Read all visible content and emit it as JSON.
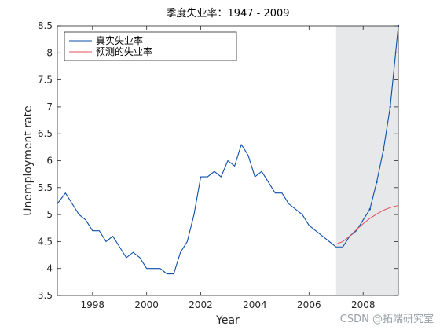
{
  "chart_data": {
    "type": "line",
    "title": "季度失业率：1947 - 2009",
    "xlabel": "Year",
    "ylabel": "Unemployment rate",
    "xlim": [
      1996.7,
      2009.3
    ],
    "ylim": [
      3.5,
      8.5
    ],
    "xticks": [
      1998,
      2000,
      2002,
      2004,
      2006,
      2008
    ],
    "yticks": [
      3.5,
      4,
      4.5,
      5,
      5.5,
      6,
      6.5,
      7,
      7.5,
      8,
      8.5
    ],
    "xtick_labels": [
      "1998",
      "2000",
      "2002",
      "2004",
      "2006",
      "2008"
    ],
    "ytick_labels": [
      "3.5",
      "4",
      "4.5",
      "5",
      "5.5",
      "6",
      "6.5",
      "7",
      "7.5",
      "8",
      "8.5"
    ],
    "shaded_region": {
      "x_start": 2007.0,
      "x_end": 2009.3,
      "color": "#e6e8ea"
    },
    "legend_placement": "top-left",
    "series": [
      {
        "name": "真实失业率",
        "color": "#0d4ea8",
        "x": [
          1996.7,
          1997.0,
          1997.25,
          1997.5,
          1997.75,
          1998.0,
          1998.25,
          1998.5,
          1998.75,
          1999.0,
          1999.25,
          1999.5,
          1999.75,
          2000.0,
          2000.25,
          2000.5,
          2000.75,
          2001.0,
          2001.25,
          2001.5,
          2001.75,
          2002.0,
          2002.25,
          2002.5,
          2002.75,
          2003.0,
          2003.25,
          2003.5,
          2003.75,
          2004.0,
          2004.25,
          2004.5,
          2004.75,
          2005.0,
          2005.25,
          2005.5,
          2005.75,
          2006.0,
          2006.25,
          2006.5,
          2006.75,
          2007.0,
          2007.25,
          2007.5,
          2007.75,
          2008.0,
          2008.25,
          2008.5,
          2008.75,
          2009.0,
          2009.3
        ],
        "y": [
          5.2,
          5.4,
          5.2,
          5.0,
          4.9,
          4.7,
          4.7,
          4.5,
          4.6,
          4.4,
          4.2,
          4.3,
          4.2,
          4.0,
          4.0,
          4.0,
          3.9,
          3.9,
          4.3,
          4.5,
          5.0,
          5.7,
          5.7,
          5.8,
          5.7,
          6.0,
          5.9,
          6.3,
          6.1,
          5.7,
          5.8,
          5.6,
          5.4,
          5.4,
          5.2,
          5.1,
          5.0,
          4.8,
          4.7,
          4.6,
          4.5,
          4.4,
          4.4,
          4.6,
          4.7,
          4.9,
          5.1,
          5.6,
          6.2,
          7.0,
          8.5
        ]
      },
      {
        "name": "预测的失业率",
        "color": "#e0525a",
        "x": [
          2007.0,
          2007.25,
          2007.5,
          2007.75,
          2008.0,
          2008.25,
          2008.5,
          2008.75,
          2009.0,
          2009.3
        ],
        "y": [
          4.45,
          4.5,
          4.6,
          4.72,
          4.83,
          4.93,
          5.01,
          5.08,
          5.13,
          5.17
        ]
      }
    ]
  },
  "watermark": {
    "text": "CSDN @拓端研究室"
  },
  "colors": {
    "axis": "#262626",
    "background": "#ffffff"
  }
}
